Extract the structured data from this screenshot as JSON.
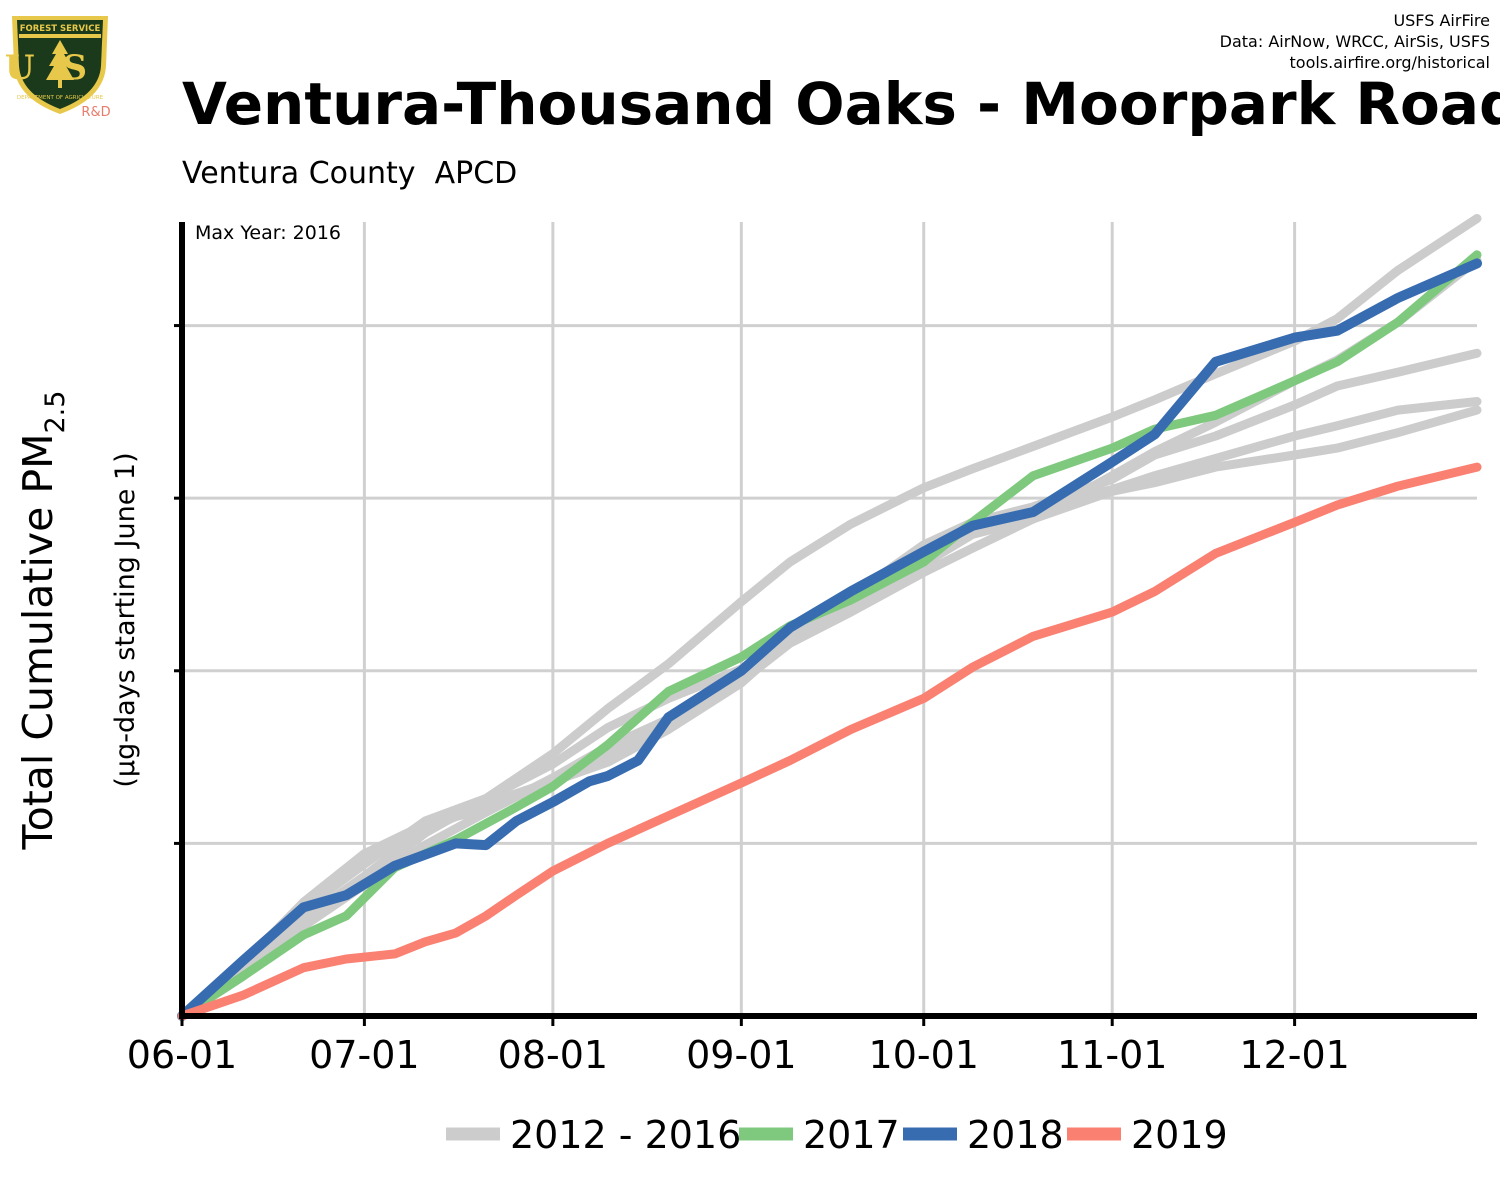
{
  "header": {
    "title": "Ventura-Thousand Oaks - Moorpark Road",
    "subtitle": "Ventura County  APCD",
    "credits": [
      "USFS AirFire",
      "Data: AirNow, WRCC, AirSis, USFS",
      "tools.airfire.org/historical"
    ],
    "logo": {
      "top_text": "FOREST SERVICE",
      "letters": "US",
      "bottom_text": "DEPARTMENT OF AGRICULTURE",
      "rd": "R&D"
    }
  },
  "colors": {
    "history": "#cccccc",
    "y2017": "#7fc97f",
    "y2018": "#386cb0",
    "y2019": "#fa8072",
    "grid": "#d0d0d0",
    "logo_shield": "#1b3a1b",
    "logo_gold": "#e8c84a",
    "logo_rd": "#e87c6a"
  },
  "chart_data": {
    "type": "line",
    "title": "Ventura-Thousand Oaks - Moorpark Road",
    "subtitle": "Ventura County  APCD",
    "ylabel": "Total Cumulative PM2.5",
    "ylabel_sub": "(µg-days starting June 1)",
    "ylabel_parts": {
      "main": "Total Cumulative PM",
      "sub": "2.5"
    },
    "annotation": "Max Year: 2016",
    "x_tick_labels": [
      "06-01",
      "07-01",
      "08-01",
      "09-01",
      "10-01",
      "11-01",
      "12-01"
    ],
    "x_tick_days": [
      0,
      30,
      61,
      92,
      122,
      153,
      183
    ],
    "xlim_days": [
      0,
      213
    ],
    "ylim": [
      0,
      4600
    ],
    "y_gridlines": [
      1000,
      2000,
      3000,
      4000
    ],
    "y_tick_labels_shown": false,
    "grid": true,
    "legend": {
      "placement": "bottom",
      "entries": [
        "2012 - 2016",
        "2017",
        "2018",
        "2019"
      ]
    },
    "series": [
      {
        "name": "2012 - 2016",
        "group": "history",
        "x": [
          0,
          10,
          20,
          30,
          40,
          50,
          61,
          70,
          80,
          92,
          100,
          110,
          122,
          130,
          140,
          153,
          160,
          170,
          183,
          190,
          200,
          213
        ],
        "y": [
          0,
          280,
          620,
          880,
          1130,
          1260,
          1520,
          1780,
          2040,
          2400,
          2630,
          2850,
          3060,
          3170,
          3300,
          3470,
          3570,
          3720,
          3910,
          4040,
          4320,
          4620
        ]
      },
      {
        "name": "",
        "group": "history",
        "x": [
          0,
          10,
          20,
          30,
          40,
          50,
          61,
          70,
          80,
          92,
          100,
          110,
          122,
          130,
          140,
          153,
          160,
          170,
          183,
          190,
          200,
          213
        ],
        "y": [
          0,
          300,
          660,
          940,
          1110,
          1200,
          1360,
          1510,
          1710,
          1940,
          2160,
          2340,
          2570,
          2710,
          2880,
          3130,
          3270,
          3440,
          3680,
          3800,
          4020,
          4380
        ]
      },
      {
        "name": "",
        "group": "history",
        "x": [
          0,
          10,
          20,
          30,
          40,
          50,
          61,
          70,
          80,
          92,
          100,
          110,
          122,
          130,
          140,
          153,
          160,
          170,
          183,
          190,
          200,
          213
        ],
        "y": [
          0,
          240,
          560,
          810,
          1080,
          1230,
          1360,
          1470,
          1660,
          1930,
          2180,
          2430,
          2730,
          2860,
          2950,
          3110,
          3250,
          3360,
          3540,
          3650,
          3730,
          3840
        ]
      },
      {
        "name": "",
        "group": "history",
        "x": [
          0,
          10,
          20,
          30,
          40,
          50,
          61,
          70,
          80,
          92,
          100,
          110,
          122,
          130,
          140,
          153,
          160,
          170,
          183,
          190,
          200,
          213
        ],
        "y": [
          0,
          230,
          520,
          760,
          990,
          1180,
          1380,
          1560,
          1720,
          1970,
          2220,
          2440,
          2680,
          2830,
          2940,
          3050,
          3130,
          3230,
          3360,
          3420,
          3510,
          3560
        ]
      },
      {
        "name": "",
        "group": "history",
        "x": [
          0,
          10,
          20,
          30,
          40,
          50,
          61,
          70,
          80,
          92,
          100,
          110,
          122,
          130,
          140,
          153,
          160,
          170,
          183,
          190,
          200,
          213
        ],
        "y": [
          0,
          240,
          550,
          790,
          1060,
          1260,
          1460,
          1670,
          1840,
          2010,
          2200,
          2380,
          2620,
          2790,
          2880,
          3040,
          3090,
          3180,
          3250,
          3290,
          3380,
          3510
        ]
      },
      {
        "name": "2017",
        "group": "y2017",
        "x": [
          0,
          10,
          20,
          27,
          35,
          45,
          55,
          61,
          70,
          80,
          92,
          100,
          110,
          122,
          130,
          140,
          153,
          160,
          170,
          183,
          190,
          200,
          213
        ],
        "y": [
          0,
          230,
          470,
          580,
          860,
          1020,
          1210,
          1330,
          1570,
          1880,
          2080,
          2260,
          2410,
          2630,
          2860,
          3130,
          3290,
          3400,
          3480,
          3680,
          3790,
          4020,
          4410
        ]
      },
      {
        "name": "2018",
        "group": "y2018",
        "x": [
          0,
          10,
          20,
          27,
          35,
          45,
          50,
          55,
          61,
          67,
          70,
          75,
          80,
          92,
          100,
          110,
          122,
          130,
          140,
          153,
          160,
          170,
          183,
          190,
          200,
          213
        ],
        "y": [
          0,
          320,
          630,
          700,
          870,
          1000,
          990,
          1130,
          1240,
          1360,
          1390,
          1480,
          1730,
          2000,
          2250,
          2460,
          2690,
          2840,
          2920,
          3210,
          3370,
          3790,
          3930,
          3970,
          4160,
          4360
        ]
      },
      {
        "name": "2019",
        "group": "y2019",
        "x": [
          0,
          10,
          20,
          27,
          35,
          40,
          45,
          50,
          55,
          61,
          70,
          80,
          92,
          100,
          110,
          122,
          130,
          140,
          153,
          160,
          170,
          183,
          190,
          200,
          213
        ],
        "y": [
          0,
          120,
          280,
          330,
          360,
          430,
          480,
          580,
          700,
          840,
          1000,
          1160,
          1350,
          1480,
          1660,
          1840,
          2020,
          2200,
          2340,
          2460,
          2680,
          2860,
          2960,
          3070,
          3180
        ]
      }
    ]
  }
}
